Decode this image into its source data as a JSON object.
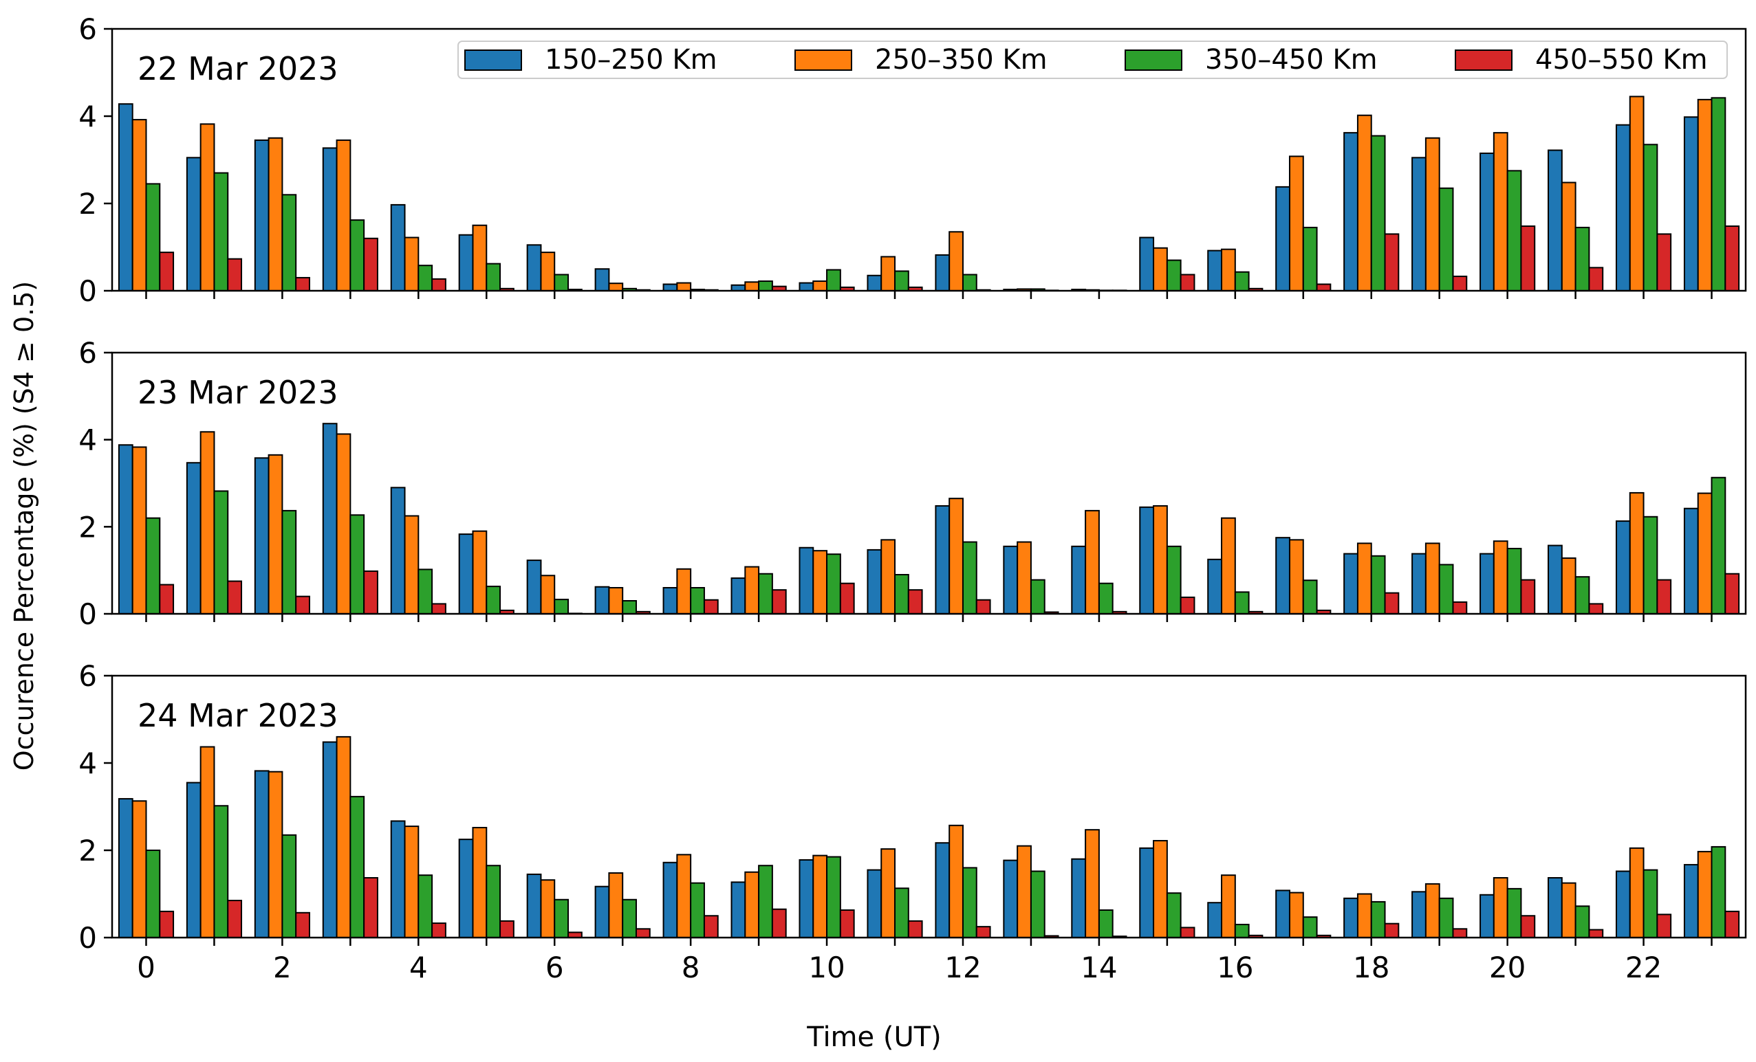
{
  "figure": {
    "ylabel": "Occurence Percentage (%) (S4  ≥  0.5)",
    "xlabel": "Time (UT)"
  },
  "legend": [
    {
      "label": "150–250 Km",
      "color": "#1f77b4"
    },
    {
      "label": "250–350 Km",
      "color": "#ff7f0e"
    },
    {
      "label": "350–450 Km",
      "color": "#2ca02c"
    },
    {
      "label": "450–550 Km",
      "color": "#d62728"
    }
  ],
  "chart_data": [
    {
      "type": "bar",
      "title": "22 Mar 2023",
      "x": [
        0,
        1,
        2,
        3,
        4,
        5,
        6,
        7,
        8,
        9,
        10,
        11,
        12,
        13,
        14,
        15,
        16,
        17,
        18,
        19,
        20,
        21,
        22,
        23
      ],
      "xticks": [
        "0",
        "2",
        "4",
        "6",
        "8",
        "10",
        "12",
        "14",
        "16",
        "18",
        "20",
        "22"
      ],
      "yticks": [
        "0",
        "2",
        "4",
        "6"
      ],
      "ylim": [
        0,
        6
      ],
      "xlim": [
        -0.5,
        23.5
      ],
      "series": [
        {
          "name": "150–250 Km",
          "color": "#1f77b4",
          "values": [
            4.28,
            3.05,
            3.45,
            3.27,
            1.97,
            1.28,
            1.05,
            0.5,
            0.15,
            0.13,
            0.18,
            0.35,
            0.82,
            0.03,
            0.03,
            1.22,
            0.92,
            2.38,
            3.62,
            3.05,
            3.15,
            3.22,
            3.8,
            3.98
          ]
        },
        {
          "name": "250–350 Km",
          "color": "#ff7f0e",
          "values": [
            3.92,
            3.82,
            3.5,
            3.45,
            1.22,
            1.5,
            0.88,
            0.17,
            0.18,
            0.2,
            0.22,
            0.78,
            1.35,
            0.04,
            0.02,
            0.98,
            0.95,
            3.08,
            4.02,
            3.5,
            3.62,
            2.48,
            4.45,
            4.38
          ]
        },
        {
          "name": "350–450 Km",
          "color": "#2ca02c",
          "values": [
            2.45,
            2.7,
            2.2,
            1.62,
            0.58,
            0.62,
            0.37,
            0.05,
            0.03,
            0.22,
            0.48,
            0.45,
            0.37,
            0.04,
            0.01,
            0.7,
            0.43,
            1.45,
            3.55,
            2.35,
            2.75,
            1.45,
            3.35,
            4.42
          ]
        },
        {
          "name": "450–550 Km",
          "color": "#d62728",
          "values": [
            0.88,
            0.73,
            0.3,
            1.2,
            0.27,
            0.05,
            0.03,
            0.02,
            0.02,
            0.1,
            0.08,
            0.08,
            0.02,
            0.01,
            0.01,
            0.37,
            0.05,
            0.15,
            1.3,
            0.33,
            1.48,
            0.53,
            1.3,
            1.48
          ]
        }
      ]
    },
    {
      "type": "bar",
      "title": "23 Mar 2023",
      "x": [
        0,
        1,
        2,
        3,
        4,
        5,
        6,
        7,
        8,
        9,
        10,
        11,
        12,
        13,
        14,
        15,
        16,
        17,
        18,
        19,
        20,
        21,
        22,
        23
      ],
      "xticks": [
        "0",
        "2",
        "4",
        "6",
        "8",
        "10",
        "12",
        "14",
        "16",
        "18",
        "20",
        "22"
      ],
      "yticks": [
        "0",
        "2",
        "4",
        "6"
      ],
      "ylim": [
        0,
        6
      ],
      "xlim": [
        -0.5,
        23.5
      ],
      "series": [
        {
          "name": "150–250 Km",
          "color": "#1f77b4",
          "values": [
            3.88,
            3.47,
            3.58,
            4.37,
            2.9,
            1.83,
            1.23,
            0.62,
            0.6,
            0.82,
            1.52,
            1.47,
            2.48,
            1.55,
            1.55,
            2.45,
            1.25,
            1.75,
            1.38,
            1.38,
            1.38,
            1.57,
            2.13,
            2.42
          ]
        },
        {
          "name": "250–350 Km",
          "color": "#ff7f0e",
          "values": [
            3.83,
            4.18,
            3.65,
            4.13,
            2.25,
            1.9,
            0.88,
            0.6,
            1.03,
            1.08,
            1.45,
            1.7,
            2.65,
            1.65,
            2.37,
            2.48,
            2.2,
            1.7,
            1.62,
            1.62,
            1.67,
            1.28,
            2.78,
            2.77
          ]
        },
        {
          "name": "350–450 Km",
          "color": "#2ca02c",
          "values": [
            2.2,
            2.82,
            2.37,
            2.27,
            1.02,
            0.63,
            0.33,
            0.3,
            0.6,
            0.92,
            1.37,
            0.9,
            1.65,
            0.78,
            0.7,
            1.55,
            0.5,
            0.77,
            1.33,
            1.13,
            1.5,
            0.85,
            2.23,
            3.13
          ]
        },
        {
          "name": "450–550 Km",
          "color": "#d62728",
          "values": [
            0.67,
            0.75,
            0.4,
            0.98,
            0.23,
            0.08,
            0.01,
            0.05,
            0.32,
            0.55,
            0.7,
            0.55,
            0.32,
            0.04,
            0.05,
            0.38,
            0.05,
            0.08,
            0.48,
            0.27,
            0.78,
            0.23,
            0.78,
            0.92
          ]
        }
      ]
    },
    {
      "type": "bar",
      "title": "24 Mar 2023",
      "x": [
        0,
        1,
        2,
        3,
        4,
        5,
        6,
        7,
        8,
        9,
        10,
        11,
        12,
        13,
        14,
        15,
        16,
        17,
        18,
        19,
        20,
        21,
        22,
        23
      ],
      "xticks": [
        "0",
        "2",
        "4",
        "6",
        "8",
        "10",
        "12",
        "14",
        "16",
        "18",
        "20",
        "22"
      ],
      "yticks": [
        "0",
        "2",
        "4",
        "6"
      ],
      "ylim": [
        0,
        6
      ],
      "xlim": [
        -0.5,
        23.5
      ],
      "series": [
        {
          "name": "150–250 Km",
          "color": "#1f77b4",
          "values": [
            3.18,
            3.55,
            3.82,
            4.48,
            2.67,
            2.25,
            1.45,
            1.17,
            1.72,
            1.27,
            1.78,
            1.55,
            2.17,
            1.77,
            1.8,
            2.05,
            0.8,
            1.08,
            0.9,
            1.05,
            0.98,
            1.37,
            1.52,
            1.67
          ]
        },
        {
          "name": "250–350 Km",
          "color": "#ff7f0e",
          "values": [
            3.13,
            4.37,
            3.8,
            4.6,
            2.55,
            2.52,
            1.32,
            1.48,
            1.9,
            1.5,
            1.88,
            2.03,
            2.57,
            2.1,
            2.47,
            2.22,
            1.43,
            1.03,
            1.0,
            1.23,
            1.37,
            1.25,
            2.05,
            1.97
          ]
        },
        {
          "name": "350–450 Km",
          "color": "#2ca02c",
          "values": [
            2.0,
            3.02,
            2.35,
            3.23,
            1.43,
            1.65,
            0.87,
            0.87,
            1.25,
            1.65,
            1.85,
            1.13,
            1.6,
            1.52,
            0.63,
            1.02,
            0.3,
            0.47,
            0.82,
            0.9,
            1.12,
            0.72,
            1.55,
            2.08
          ]
        },
        {
          "name": "450–550 Km",
          "color": "#d62728",
          "values": [
            0.6,
            0.85,
            0.57,
            1.37,
            0.33,
            0.38,
            0.12,
            0.2,
            0.5,
            0.65,
            0.63,
            0.38,
            0.25,
            0.04,
            0.03,
            0.23,
            0.05,
            0.05,
            0.32,
            0.2,
            0.5,
            0.18,
            0.53,
            0.6
          ]
        }
      ]
    }
  ]
}
